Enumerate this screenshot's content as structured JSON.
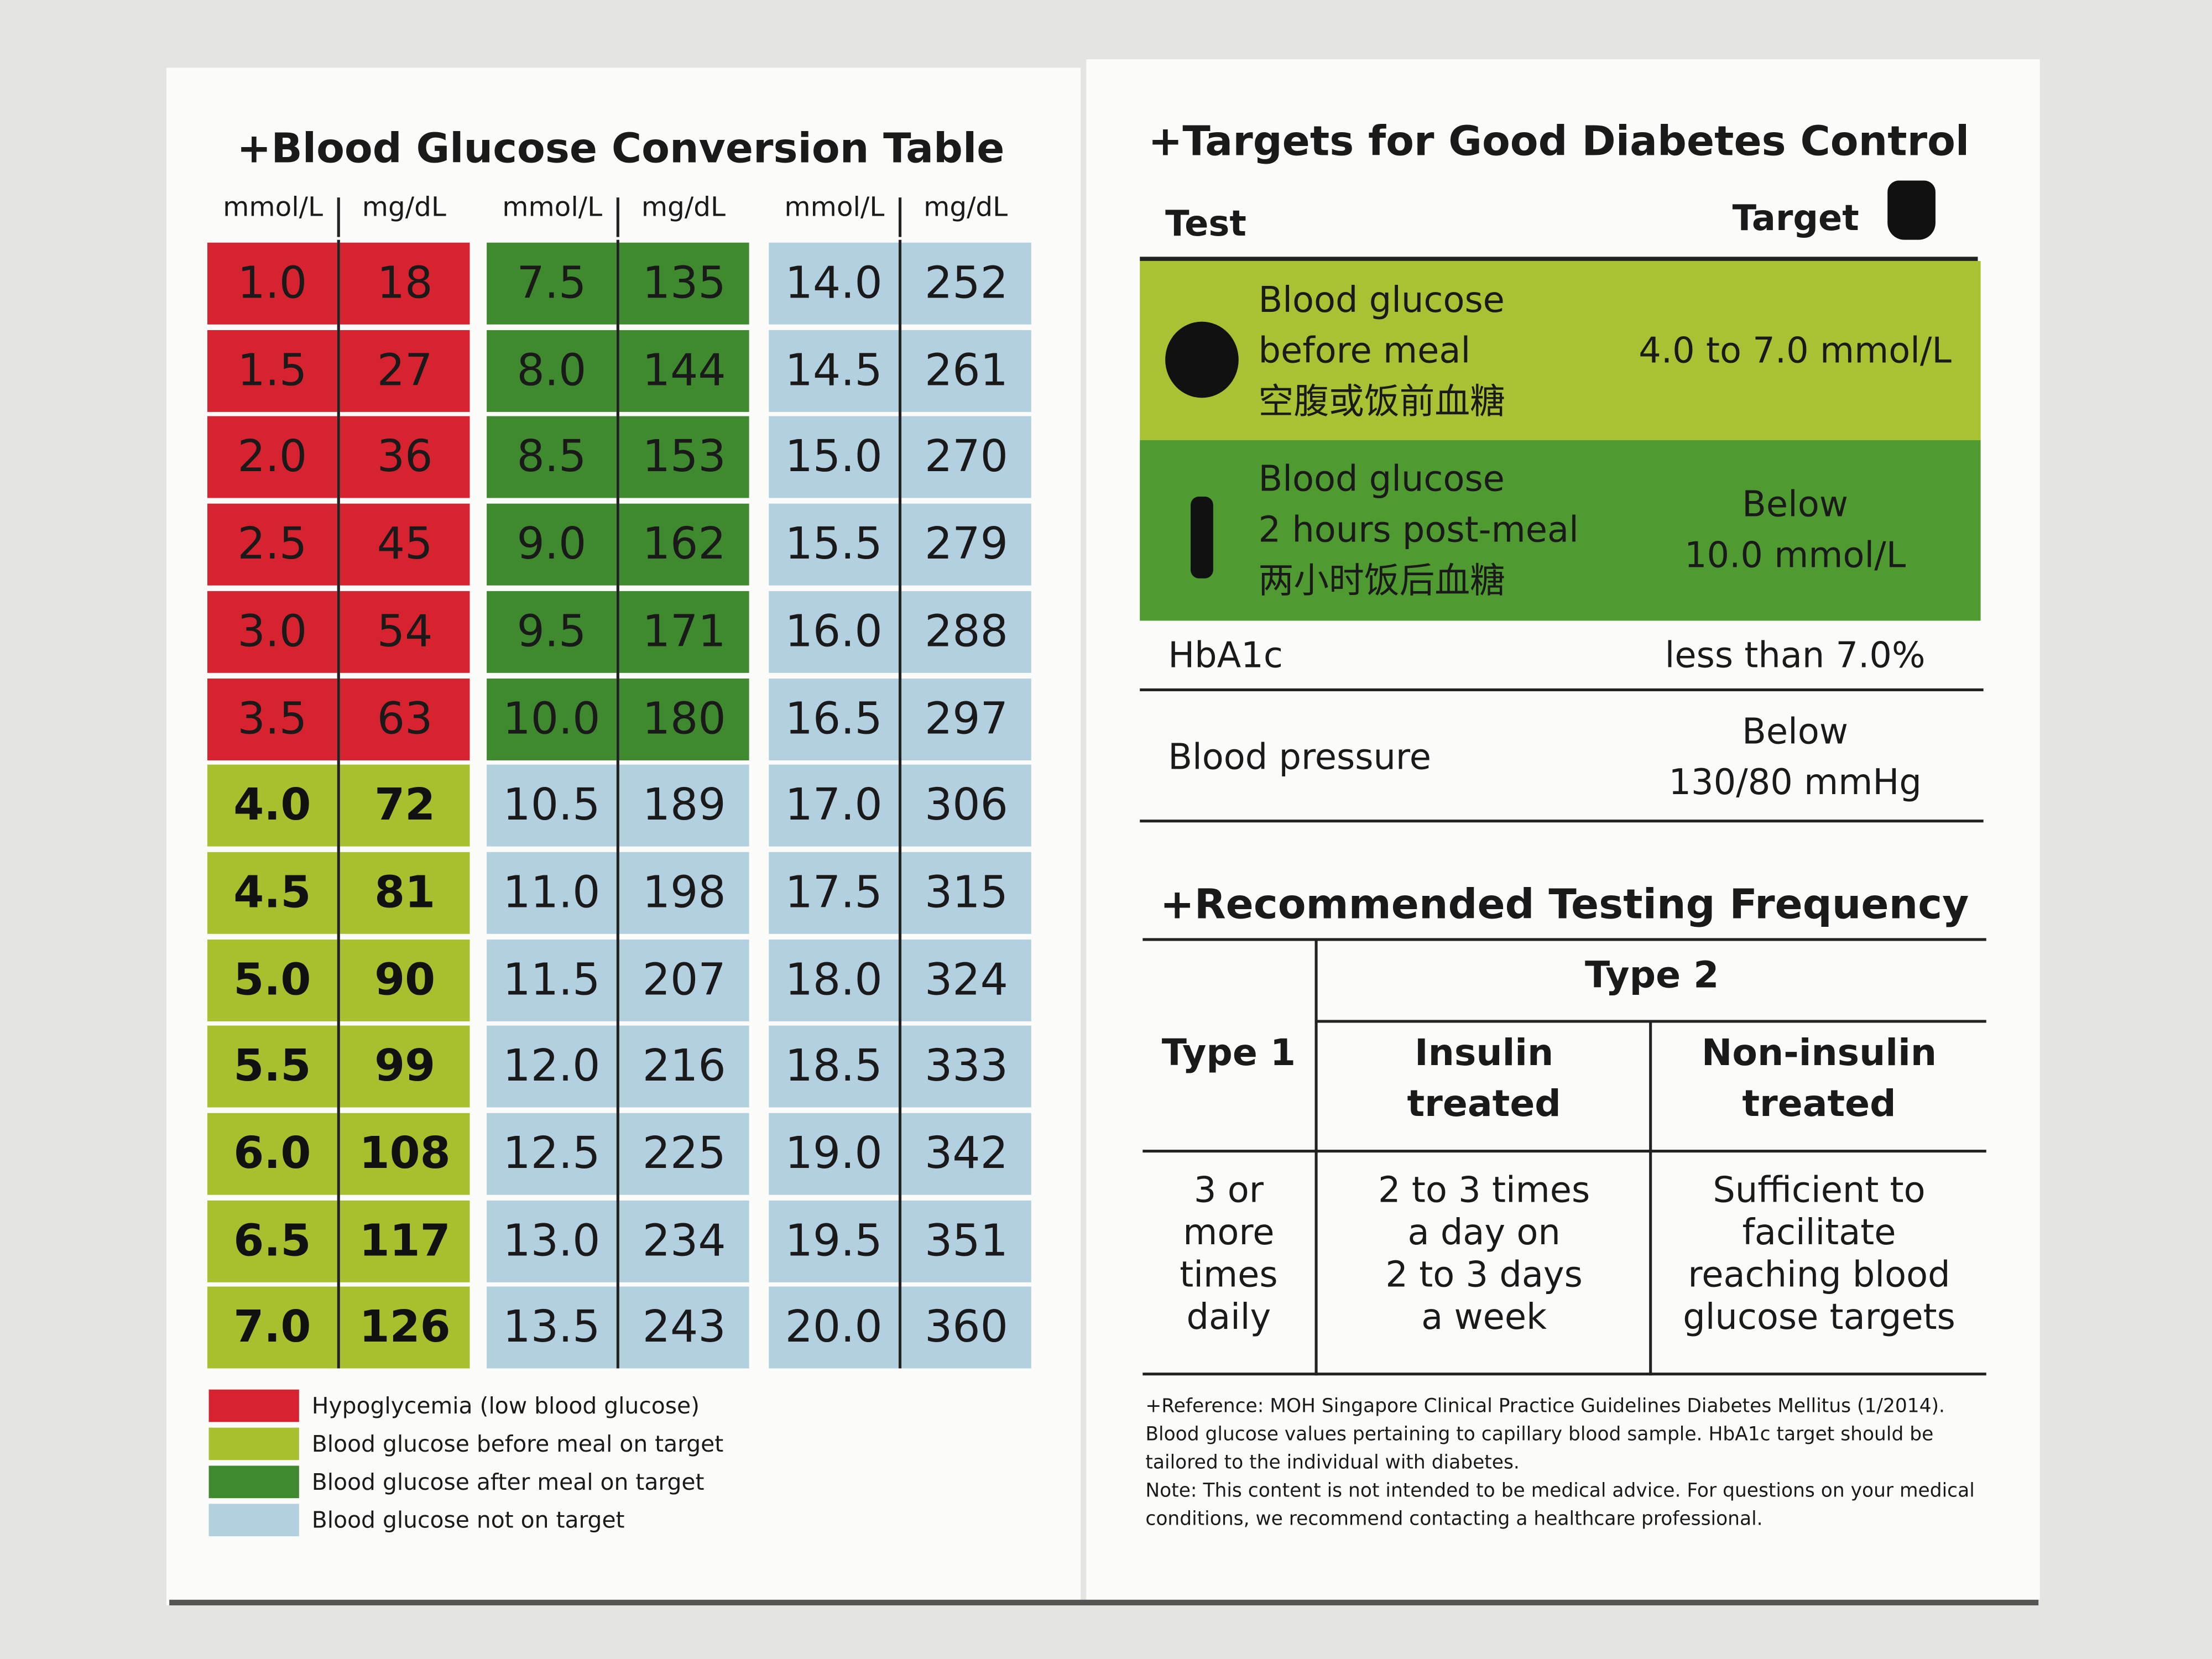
{
  "conversion_table": {
    "title": "+Blood Glucose Conversion Table",
    "column_headers": [
      "mmol/L",
      "mg/dL"
    ],
    "groups": [
      {
        "rows": [
          {
            "mmol": "1.0",
            "mgdl": "18",
            "color": "#d7232f"
          },
          {
            "mmol": "1.5",
            "mgdl": "27",
            "color": "#d7232f"
          },
          {
            "mmol": "2.0",
            "mgdl": "36",
            "color": "#d7232f"
          },
          {
            "mmol": "2.5",
            "mgdl": "45",
            "color": "#d7232f"
          },
          {
            "mmol": "3.0",
            "mgdl": "54",
            "color": "#d7232f"
          },
          {
            "mmol": "3.5",
            "mgdl": "63",
            "color": "#d7232f"
          },
          {
            "mmol": "4.0",
            "mgdl": "72",
            "color": "#a8bf2e"
          },
          {
            "mmol": "4.5",
            "mgdl": "81",
            "color": "#a8bf2e"
          },
          {
            "mmol": "5.0",
            "mgdl": "90",
            "color": "#a8bf2e"
          },
          {
            "mmol": "5.5",
            "mgdl": "99",
            "color": "#a8bf2e"
          },
          {
            "mmol": "6.0",
            "mgdl": "108",
            "color": "#a8bf2e"
          },
          {
            "mmol": "6.5",
            "mgdl": "117",
            "color": "#a8bf2e"
          },
          {
            "mmol": "7.0",
            "mgdl": "126",
            "color": "#a8bf2e"
          }
        ]
      },
      {
        "rows": [
          {
            "mmol": "7.5",
            "mgdl": "135",
            "color": "#3f8a2f"
          },
          {
            "mmol": "8.0",
            "mgdl": "144",
            "color": "#3f8a2f"
          },
          {
            "mmol": "8.5",
            "mgdl": "153",
            "color": "#3f8a2f"
          },
          {
            "mmol": "9.0",
            "mgdl": "162",
            "color": "#3f8a2f"
          },
          {
            "mmol": "9.5",
            "mgdl": "171",
            "color": "#3f8a2f"
          },
          {
            "mmol": "10.0",
            "mgdl": "180",
            "color": "#3f8a2f"
          },
          {
            "mmol": "10.5",
            "mgdl": "189",
            "color": "#b3d0e0"
          },
          {
            "mmol": "11.0",
            "mgdl": "198",
            "color": "#b3d0e0"
          },
          {
            "mmol": "11.5",
            "mgdl": "207",
            "color": "#b3d0e0"
          },
          {
            "mmol": "12.0",
            "mgdl": "216",
            "color": "#b3d0e0"
          },
          {
            "mmol": "12.5",
            "mgdl": "225",
            "color": "#b3d0e0"
          },
          {
            "mmol": "13.0",
            "mgdl": "234",
            "color": "#b3d0e0"
          },
          {
            "mmol": "13.5",
            "mgdl": "243",
            "color": "#b3d0e0"
          }
        ]
      },
      {
        "rows": [
          {
            "mmol": "14.0",
            "mgdl": "252",
            "color": "#b3d0e0"
          },
          {
            "mmol": "14.5",
            "mgdl": "261",
            "color": "#b3d0e0"
          },
          {
            "mmol": "15.0",
            "mgdl": "270",
            "color": "#b3d0e0"
          },
          {
            "mmol": "15.5",
            "mgdl": "279",
            "color": "#b3d0e0"
          },
          {
            "mmol": "16.0",
            "mgdl": "288",
            "color": "#b3d0e0"
          },
          {
            "mmol": "16.5",
            "mgdl": "297",
            "color": "#b3d0e0"
          },
          {
            "mmol": "17.0",
            "mgdl": "306",
            "color": "#b3d0e0"
          },
          {
            "mmol": "17.5",
            "mgdl": "315",
            "color": "#b3d0e0"
          },
          {
            "mmol": "18.0",
            "mgdl": "324",
            "color": "#b3d0e0"
          },
          {
            "mmol": "18.5",
            "mgdl": "333",
            "color": "#b3d0e0"
          },
          {
            "mmol": "19.0",
            "mgdl": "342",
            "color": "#b3d0e0"
          },
          {
            "mmol": "19.5",
            "mgdl": "351",
            "color": "#b3d0e0"
          },
          {
            "mmol": "20.0",
            "mgdl": "360",
            "color": "#b3d0e0"
          }
        ]
      }
    ],
    "legend": [
      {
        "color": "#d7232f",
        "label": "Hypoglycemia (low blood glucose)"
      },
      {
        "color": "#a8bf2e",
        "label": "Blood glucose before meal on target"
      },
      {
        "color": "#3f8a2f",
        "label": "Blood glucose after meal on target"
      },
      {
        "color": "#b3d0e0",
        "label": "Blood glucose not on target"
      }
    ]
  },
  "targets": {
    "title": "+Targets for Good Diabetes Control",
    "headers": {
      "test": "Test",
      "target": "Target"
    },
    "rows": [
      {
        "test": [
          "Blood glucose",
          "before meal",
          "空腹或饭前血糖"
        ],
        "target": [
          "4.0 to 7.0 mmol/L"
        ],
        "color": "#a9c234"
      },
      {
        "test": [
          "Blood glucose",
          "2 hours post-meal",
          "两小时饭后血糖"
        ],
        "target": [
          "Below",
          "10.0 mmol/L"
        ],
        "color": "#4f9a31"
      },
      {
        "test": [
          "HbA1c"
        ],
        "target": [
          "less than 7.0%"
        ]
      },
      {
        "test": [
          "Blood pressure"
        ],
        "target": [
          "Below",
          "130/80 mmHg"
        ]
      }
    ]
  },
  "frequency": {
    "title": "+Recommended Testing Frequency",
    "header": {
      "type1": "Type 1",
      "type2": "Type 2",
      "insulin": [
        "Insulin",
        "treated"
      ],
      "non_insulin": [
        "Non-insulin",
        "treated"
      ]
    },
    "body": [
      [
        "3 or",
        "more",
        "times",
        "daily"
      ],
      [
        "2 to 3 times",
        "a day on",
        "2 to 3 days",
        "a week"
      ],
      [
        "Sufficient to",
        "facilitate",
        "reaching blood",
        "glucose targets"
      ]
    ]
  },
  "reference": [
    "+Reference: MOH Singapore Clinical Practice Guidelines Diabetes Mellitus (1/2014).",
    "Blood glucose values pertaining to capillary blood sample. HbA1c target should be",
    "tailored to the individual with diabetes.",
    "Note: This content is not intended to be medical advice. For questions on your medical",
    "conditions, we recommend contacting a healthcare professional."
  ]
}
